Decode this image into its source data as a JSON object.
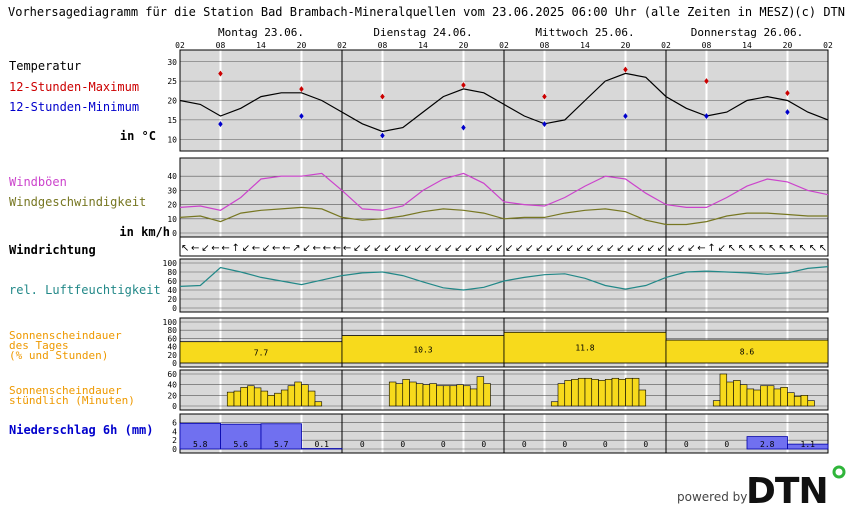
{
  "title": "Vorhersagediagramm für die Station Bad Brambach-Mineralquellen vom 23.06.2025 06:00 Uhr (alle Zeiten in MESZ)",
  "copyright": "(c) DTN",
  "days": [
    "Montag 23.06.",
    "Dienstag 24.06.",
    "Mittwoch 25.06.",
    "Donnerstag 26.06."
  ],
  "hour_labels": [
    "02",
    "08",
    "14",
    "20",
    "02",
    "08",
    "14",
    "20",
    "02",
    "08",
    "14",
    "20",
    "02",
    "08",
    "14",
    "20",
    "02"
  ],
  "labels": {
    "temperature": "Temperatur",
    "tmax": "12-Stunden-Maximum",
    "tmin": "12-Stunden-Minimum",
    "temp_unit": "in °C",
    "gusts": "Windböen",
    "windspeed": "Windgeschwindigkeit",
    "wind_unit": "in km/h",
    "winddir": "Windrichtung",
    "humidity": "rel. Luftfeuchtigkeit",
    "sun_day_1": "Sonnenscheindauer",
    "sun_day_2": "des Tages",
    "sun_day_3": "(% und Stunden)",
    "sun_hour_1": "Sonnenscheindauer",
    "sun_hour_2": "stündlich (Minuten)",
    "precip": "Niederschlag 6h (mm)"
  },
  "colors": {
    "title": "#000000",
    "tmax": "#cc0000",
    "tmin": "#0000cc",
    "gusts": "#cc44cc",
    "windspeed": "#777722",
    "humidity": "#228888",
    "sunshine": "#ee9900",
    "sunshine_fill": "#f7da1c",
    "precip": "#0000cc",
    "precip_fill": "#7070f0",
    "panel_bg": "#d8d8d8",
    "gap_bg": "#ffffff"
  },
  "powered_by": "powered by",
  "logo": "DTN",
  "chart_data": [
    {
      "type": "line",
      "name": "temperature",
      "x_hours": [
        0,
        3,
        6,
        9,
        12,
        15,
        18,
        21,
        24,
        27,
        30,
        33,
        36,
        39,
        42,
        45,
        48,
        51,
        54,
        57,
        60,
        63,
        66,
        69,
        72,
        75,
        78,
        81,
        84,
        87,
        90,
        93,
        96
      ],
      "values": [
        20,
        19,
        16,
        18,
        21,
        22,
        22,
        20,
        17,
        14,
        12,
        13,
        17,
        21,
        23,
        22,
        19,
        16,
        14,
        15,
        20,
        25,
        27,
        26,
        21,
        18,
        16,
        17,
        20,
        21,
        20,
        17,
        15
      ],
      "tmax": [
        {
          "hour": 6,
          "value": 27
        },
        {
          "hour": 18,
          "value": 23
        },
        {
          "hour": 30,
          "value": 21
        },
        {
          "hour": 42,
          "value": 24
        },
        {
          "hour": 54,
          "value": 21
        },
        {
          "hour": 66,
          "value": 28
        },
        {
          "hour": 78,
          "value": 25
        },
        {
          "hour": 90,
          "value": 22
        }
      ],
      "tmin": [
        {
          "hour": 6,
          "value": 14
        },
        {
          "hour": 18,
          "value": 16
        },
        {
          "hour": 30,
          "value": 11
        },
        {
          "hour": 42,
          "value": 13
        },
        {
          "hour": 54,
          "value": 14
        },
        {
          "hour": 66,
          "value": 16
        },
        {
          "hour": 78,
          "value": 16
        },
        {
          "hour": 90,
          "value": 17
        }
      ],
      "y_ticks": [
        10,
        15,
        20,
        25,
        30
      ],
      "ylim": [
        8,
        32
      ]
    },
    {
      "type": "line",
      "name": "wind",
      "x_hours": [
        0,
        3,
        6,
        9,
        12,
        15,
        18,
        21,
        24,
        27,
        30,
        33,
        36,
        39,
        42,
        45,
        48,
        51,
        54,
        57,
        60,
        63,
        66,
        69,
        72,
        75,
        78,
        81,
        84,
        87,
        90,
        93,
        96
      ],
      "gusts": [
        18,
        19,
        16,
        25,
        38,
        40,
        40,
        42,
        30,
        17,
        16,
        19,
        30,
        38,
        42,
        35,
        22,
        20,
        19,
        25,
        33,
        40,
        38,
        28,
        20,
        18,
        18,
        25,
        33,
        38,
        36,
        30,
        27
      ],
      "windspeed": [
        11,
        12,
        8,
        14,
        16,
        17,
        18,
        17,
        11,
        9,
        10,
        12,
        15,
        17,
        16,
        14,
        10,
        11,
        11,
        14,
        16,
        17,
        15,
        9,
        6,
        6,
        8,
        12,
        14,
        14,
        13,
        12,
        12
      ],
      "y_ticks": [
        0,
        10,
        20,
        30,
        40
      ],
      "ylim": [
        0,
        50
      ]
    },
    {
      "type": "line",
      "name": "winddir",
      "symbols": [
        "↖",
        "←",
        "↙",
        "←",
        "←",
        "↑",
        "↙",
        "←",
        "↙",
        "←",
        "←",
        "↗",
        "↙",
        "←",
        "←",
        "←",
        "←",
        "↙",
        "↙",
        "↙",
        "↙",
        "↙",
        "↙",
        "↙",
        "↙",
        "↙",
        "↙",
        "↙",
        "↙",
        "↙",
        "↙",
        "↙",
        "↙",
        "↙",
        "↙",
        "↙",
        "↙",
        "↙",
        "↙",
        "↙",
        "↙",
        "↙",
        "↙",
        "↙",
        "↙",
        "↙",
        "↙",
        "↙",
        "↙",
        "↙",
        "↙",
        "←",
        "↑",
        "↙",
        "↖",
        "↖",
        "↖",
        "↖",
        "↖",
        "↖",
        "↖",
        "↖",
        "↖",
        "↖"
      ]
    },
    {
      "type": "line",
      "name": "humidity",
      "x_hours": [
        0,
        3,
        6,
        9,
        12,
        15,
        18,
        21,
        24,
        27,
        30,
        33,
        36,
        39,
        42,
        45,
        48,
        51,
        54,
        57,
        60,
        63,
        66,
        69,
        72,
        75,
        78,
        81,
        84,
        87,
        90,
        93,
        96
      ],
      "values": [
        48,
        50,
        90,
        80,
        68,
        60,
        52,
        62,
        72,
        78,
        80,
        72,
        58,
        45,
        40,
        46,
        60,
        68,
        74,
        76,
        66,
        50,
        42,
        50,
        68,
        80,
        82,
        80,
        78,
        75,
        78,
        88,
        92
      ],
      "y_ticks": [
        0,
        20,
        40,
        60,
        80,
        100
      ],
      "ylim": [
        0,
        100
      ]
    },
    {
      "type": "bar",
      "name": "sunshine_daily",
      "categories": [
        "Montag 23.06.",
        "Dienstag 24.06.",
        "Mittwoch 25.06.",
        "Donnerstag 26.06."
      ],
      "percent": [
        52,
        67,
        75,
        56
      ],
      "hours_labels": [
        "7.7",
        "10.3",
        "11.8",
        "8.6"
      ],
      "y_ticks": [
        0,
        20,
        40,
        60,
        80,
        100
      ],
      "ylim": [
        0,
        100
      ]
    },
    {
      "type": "bar",
      "name": "sunshine_hourly",
      "minutes": [
        [
          0,
          0,
          0,
          0,
          0,
          0,
          0,
          26,
          28,
          35,
          38,
          34,
          28,
          20,
          24,
          30,
          38,
          45,
          40,
          28,
          8,
          0,
          0,
          0
        ],
        [
          0,
          0,
          0,
          0,
          0,
          0,
          0,
          45,
          42,
          50,
          45,
          42,
          40,
          42,
          38,
          38,
          38,
          40,
          38,
          32,
          55,
          42,
          0,
          0
        ],
        [
          0,
          0,
          0,
          0,
          0,
          0,
          0,
          8,
          42,
          48,
          50,
          52,
          52,
          50,
          48,
          50,
          52,
          50,
          52,
          52,
          30,
          0,
          0,
          0
        ],
        [
          0,
          0,
          0,
          0,
          0,
          0,
          0,
          10,
          60,
          45,
          48,
          40,
          32,
          30,
          38,
          38,
          32,
          35,
          25,
          18,
          20,
          10,
          0,
          0
        ]
      ],
      "y_ticks": [
        0,
        20,
        40,
        60
      ],
      "ylim": [
        0,
        60
      ]
    },
    {
      "type": "bar",
      "name": "precipitation_6h",
      "values": [
        5.8,
        5.6,
        5.7,
        0.1,
        0,
        0,
        0,
        0,
        0,
        0,
        0,
        0,
        0,
        0,
        2.8,
        1.1
      ],
      "labels": [
        "5.8",
        "5.6",
        "5.7",
        "0.1",
        "0",
        "0",
        "0",
        "0",
        "0",
        "0",
        "0",
        "0",
        "0",
        "0",
        "2.8",
        "1.1"
      ],
      "y_ticks": [
        0,
        2,
        4,
        6
      ],
      "ylim": [
        0,
        7
      ]
    }
  ]
}
